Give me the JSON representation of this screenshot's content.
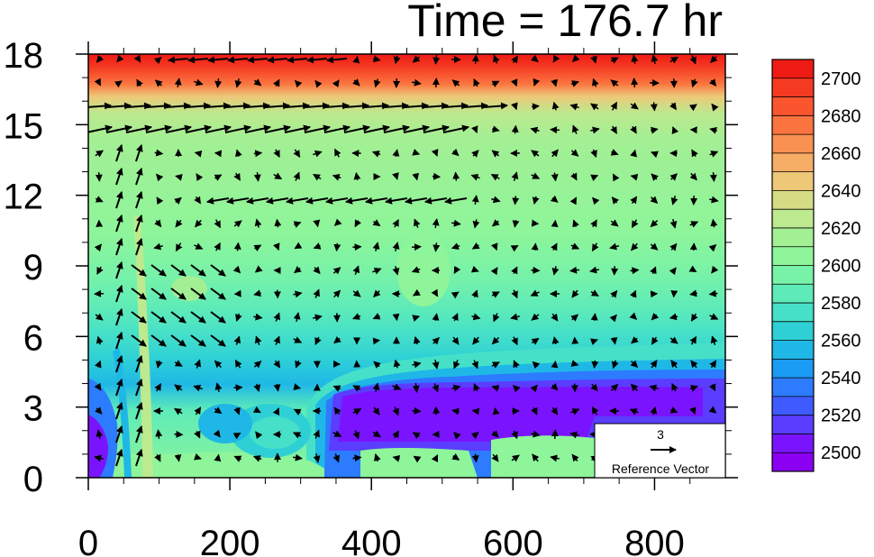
{
  "chart_data": {
    "type": "heatmap",
    "title": "Time = 176.7 hr",
    "xlim": [
      0,
      900
    ],
    "ylim": [
      0,
      18
    ],
    "x_ticks": [
      0,
      200,
      400,
      600,
      800
    ],
    "y_ticks": [
      0,
      3,
      6,
      9,
      12,
      15,
      18
    ],
    "colorbar": {
      "levels": [
        2490,
        2500,
        2510,
        2520,
        2530,
        2540,
        2550,
        2560,
        2570,
        2580,
        2590,
        2600,
        2610,
        2620,
        2630,
        2640,
        2650,
        2660,
        2670,
        2680,
        2690,
        2700,
        2710
      ],
      "colors": [
        "#8a00f0",
        "#7a14ff",
        "#5a3dff",
        "#3f5bff",
        "#2d7bff",
        "#1a9bf4",
        "#1fb8e6",
        "#2ed0d6",
        "#46e0c8",
        "#5eebb8",
        "#78f2a8",
        "#8ef59a",
        "#a3ef94",
        "#bde98f",
        "#d6dc84",
        "#ecc878",
        "#f6ad66",
        "#f99150",
        "#fb7440",
        "#fb5530",
        "#f53a22",
        "#ee1a14"
      ],
      "tick_labels": [
        "2500",
        "2520",
        "2540",
        "2560",
        "2580",
        "2600",
        "2620",
        "2640",
        "2660",
        "2680",
        "2700"
      ]
    },
    "reference_vector": {
      "magnitude": "3",
      "label": "Reference Vector"
    }
  }
}
